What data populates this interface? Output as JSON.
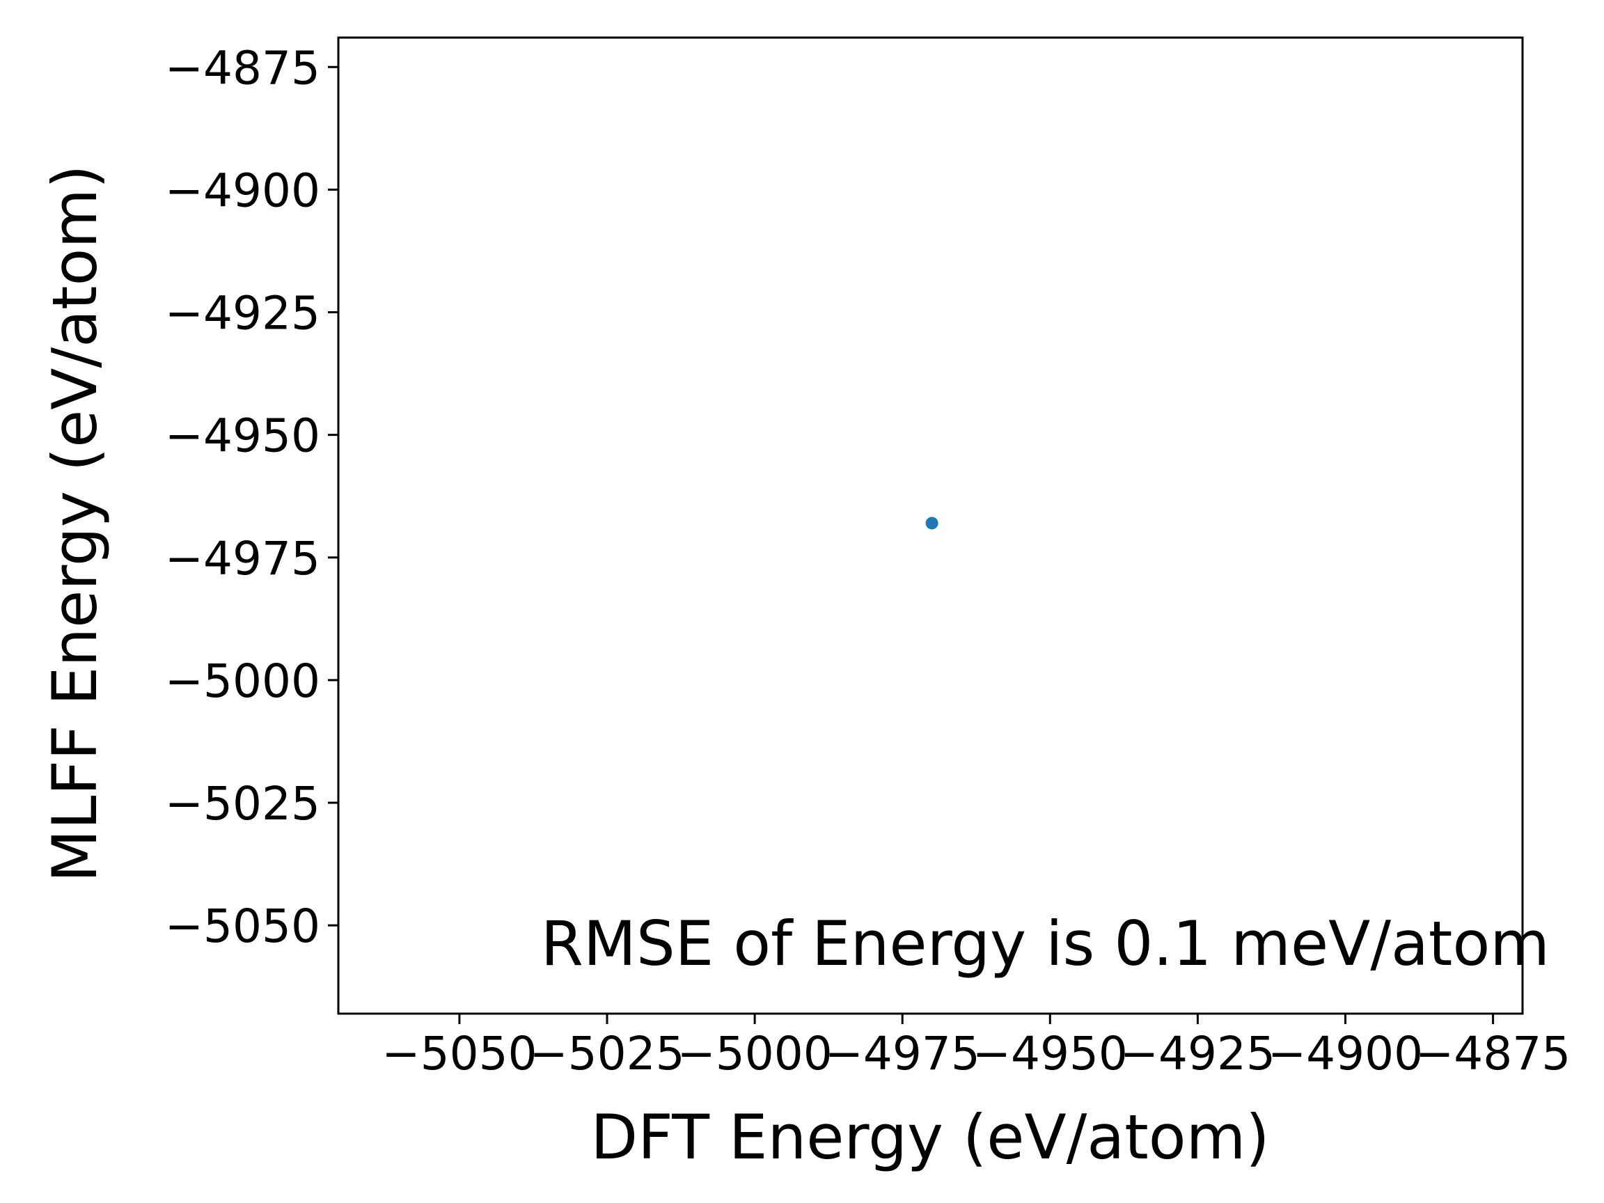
{
  "chart_data": {
    "type": "scatter",
    "title": "",
    "xlabel": "DFT Energy (eV/atom)",
    "ylabel": "MLFF Energy (eV/atom)",
    "xlim": [
      -5070.5,
      -4870
    ],
    "ylim": [
      -5068,
      -4869
    ],
    "xticks": [
      -5050,
      -5025,
      -5000,
      -4975,
      -4950,
      -4925,
      -4900,
      -4875
    ],
    "xtick_labels": [
      "−5050",
      "−5025",
      "−5000",
      "−4975",
      "−4950",
      "−4925",
      "−4900",
      "−4875"
    ],
    "yticks": [
      -4875,
      -4900,
      -4925,
      -4950,
      -4975,
      -5000,
      -5025,
      -5050
    ],
    "ytick_labels": [
      "−4875",
      "−4900",
      "−4925",
      "−4950",
      "−4975",
      "−5000",
      "−5025",
      "−5050"
    ],
    "series": [
      {
        "points": [
          {
            "x": -4970.0,
            "y": -4968.0
          }
        ],
        "color": "#1f77b4"
      }
    ],
    "annotation": "RMSE of Energy is 0.1 meV/atom",
    "annotation_placement": "bottom-right",
    "grid": false,
    "legend": "none"
  }
}
